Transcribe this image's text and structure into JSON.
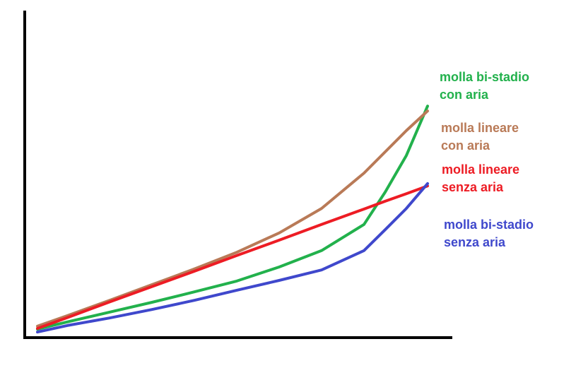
{
  "chart_data": {
    "type": "line",
    "x": [
      3,
      10,
      20,
      30,
      40,
      50,
      60,
      70,
      80,
      85,
      90,
      95
    ],
    "xlim": [
      0,
      100
    ],
    "ylim": [
      0,
      100
    ],
    "grid": false,
    "series": [
      {
        "name": "molla bi-stadio\ncon aria",
        "color": "#22b14c",
        "values": [
          2.6,
          4.8,
          7.8,
          10.8,
          14.0,
          17.3,
          21.6,
          26.6,
          34.6,
          44.5,
          55.7,
          70.8
        ]
      },
      {
        "name": "molla lineare\ncon aria",
        "color": "#b97a57",
        "values": [
          3.5,
          6.7,
          11.4,
          16.2,
          21.0,
          26.1,
          32.0,
          39.5,
          50.3,
          56.8,
          63.3,
          69.3
        ]
      },
      {
        "name": "molla lineare\nsenza aria",
        "color": "#ed1c24",
        "values": [
          2.8,
          6.1,
          10.9,
          15.6,
          20.3,
          25.1,
          29.8,
          34.6,
          39.3,
          41.7,
          44.0,
          46.4
        ]
      },
      {
        "name": "molla bi-stadio\nsenza aria",
        "color": "#3f48cc",
        "values": [
          1.7,
          3.7,
          6.0,
          8.6,
          11.4,
          14.5,
          17.5,
          20.7,
          26.6,
          33.0,
          39.5,
          47.1
        ]
      }
    ]
  }
}
